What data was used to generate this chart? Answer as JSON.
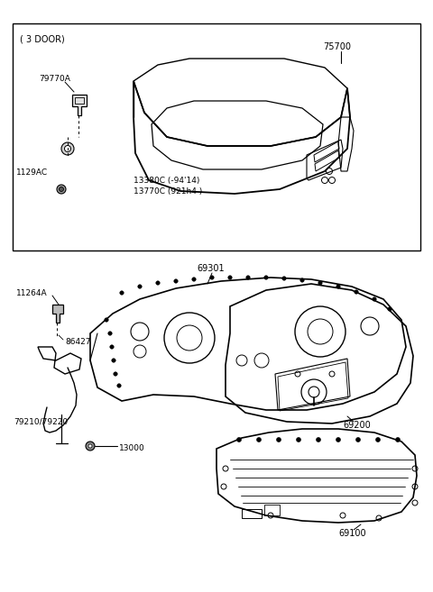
{
  "bg_color": "#ffffff",
  "line_color": "#000000",
  "fig_width": 4.8,
  "fig_height": 6.57,
  "dpi": 100,
  "parts": {
    "upper_box_label": "( 3 DOOR)",
    "part_75700": "75700",
    "part_79770A": "79770A",
    "part_1129AC": "1129AC",
    "part_13380C_line1": "13380C (-94'14)",
    "part_13380C_line2": "13770C (921h4 )",
    "part_69301": "69301",
    "part_11264A": "11264A",
    "part_86427": "86427",
    "part_79210": "79210/79220",
    "part_13000": "13000",
    "part_69200": "69200",
    "part_69100": "69100"
  }
}
